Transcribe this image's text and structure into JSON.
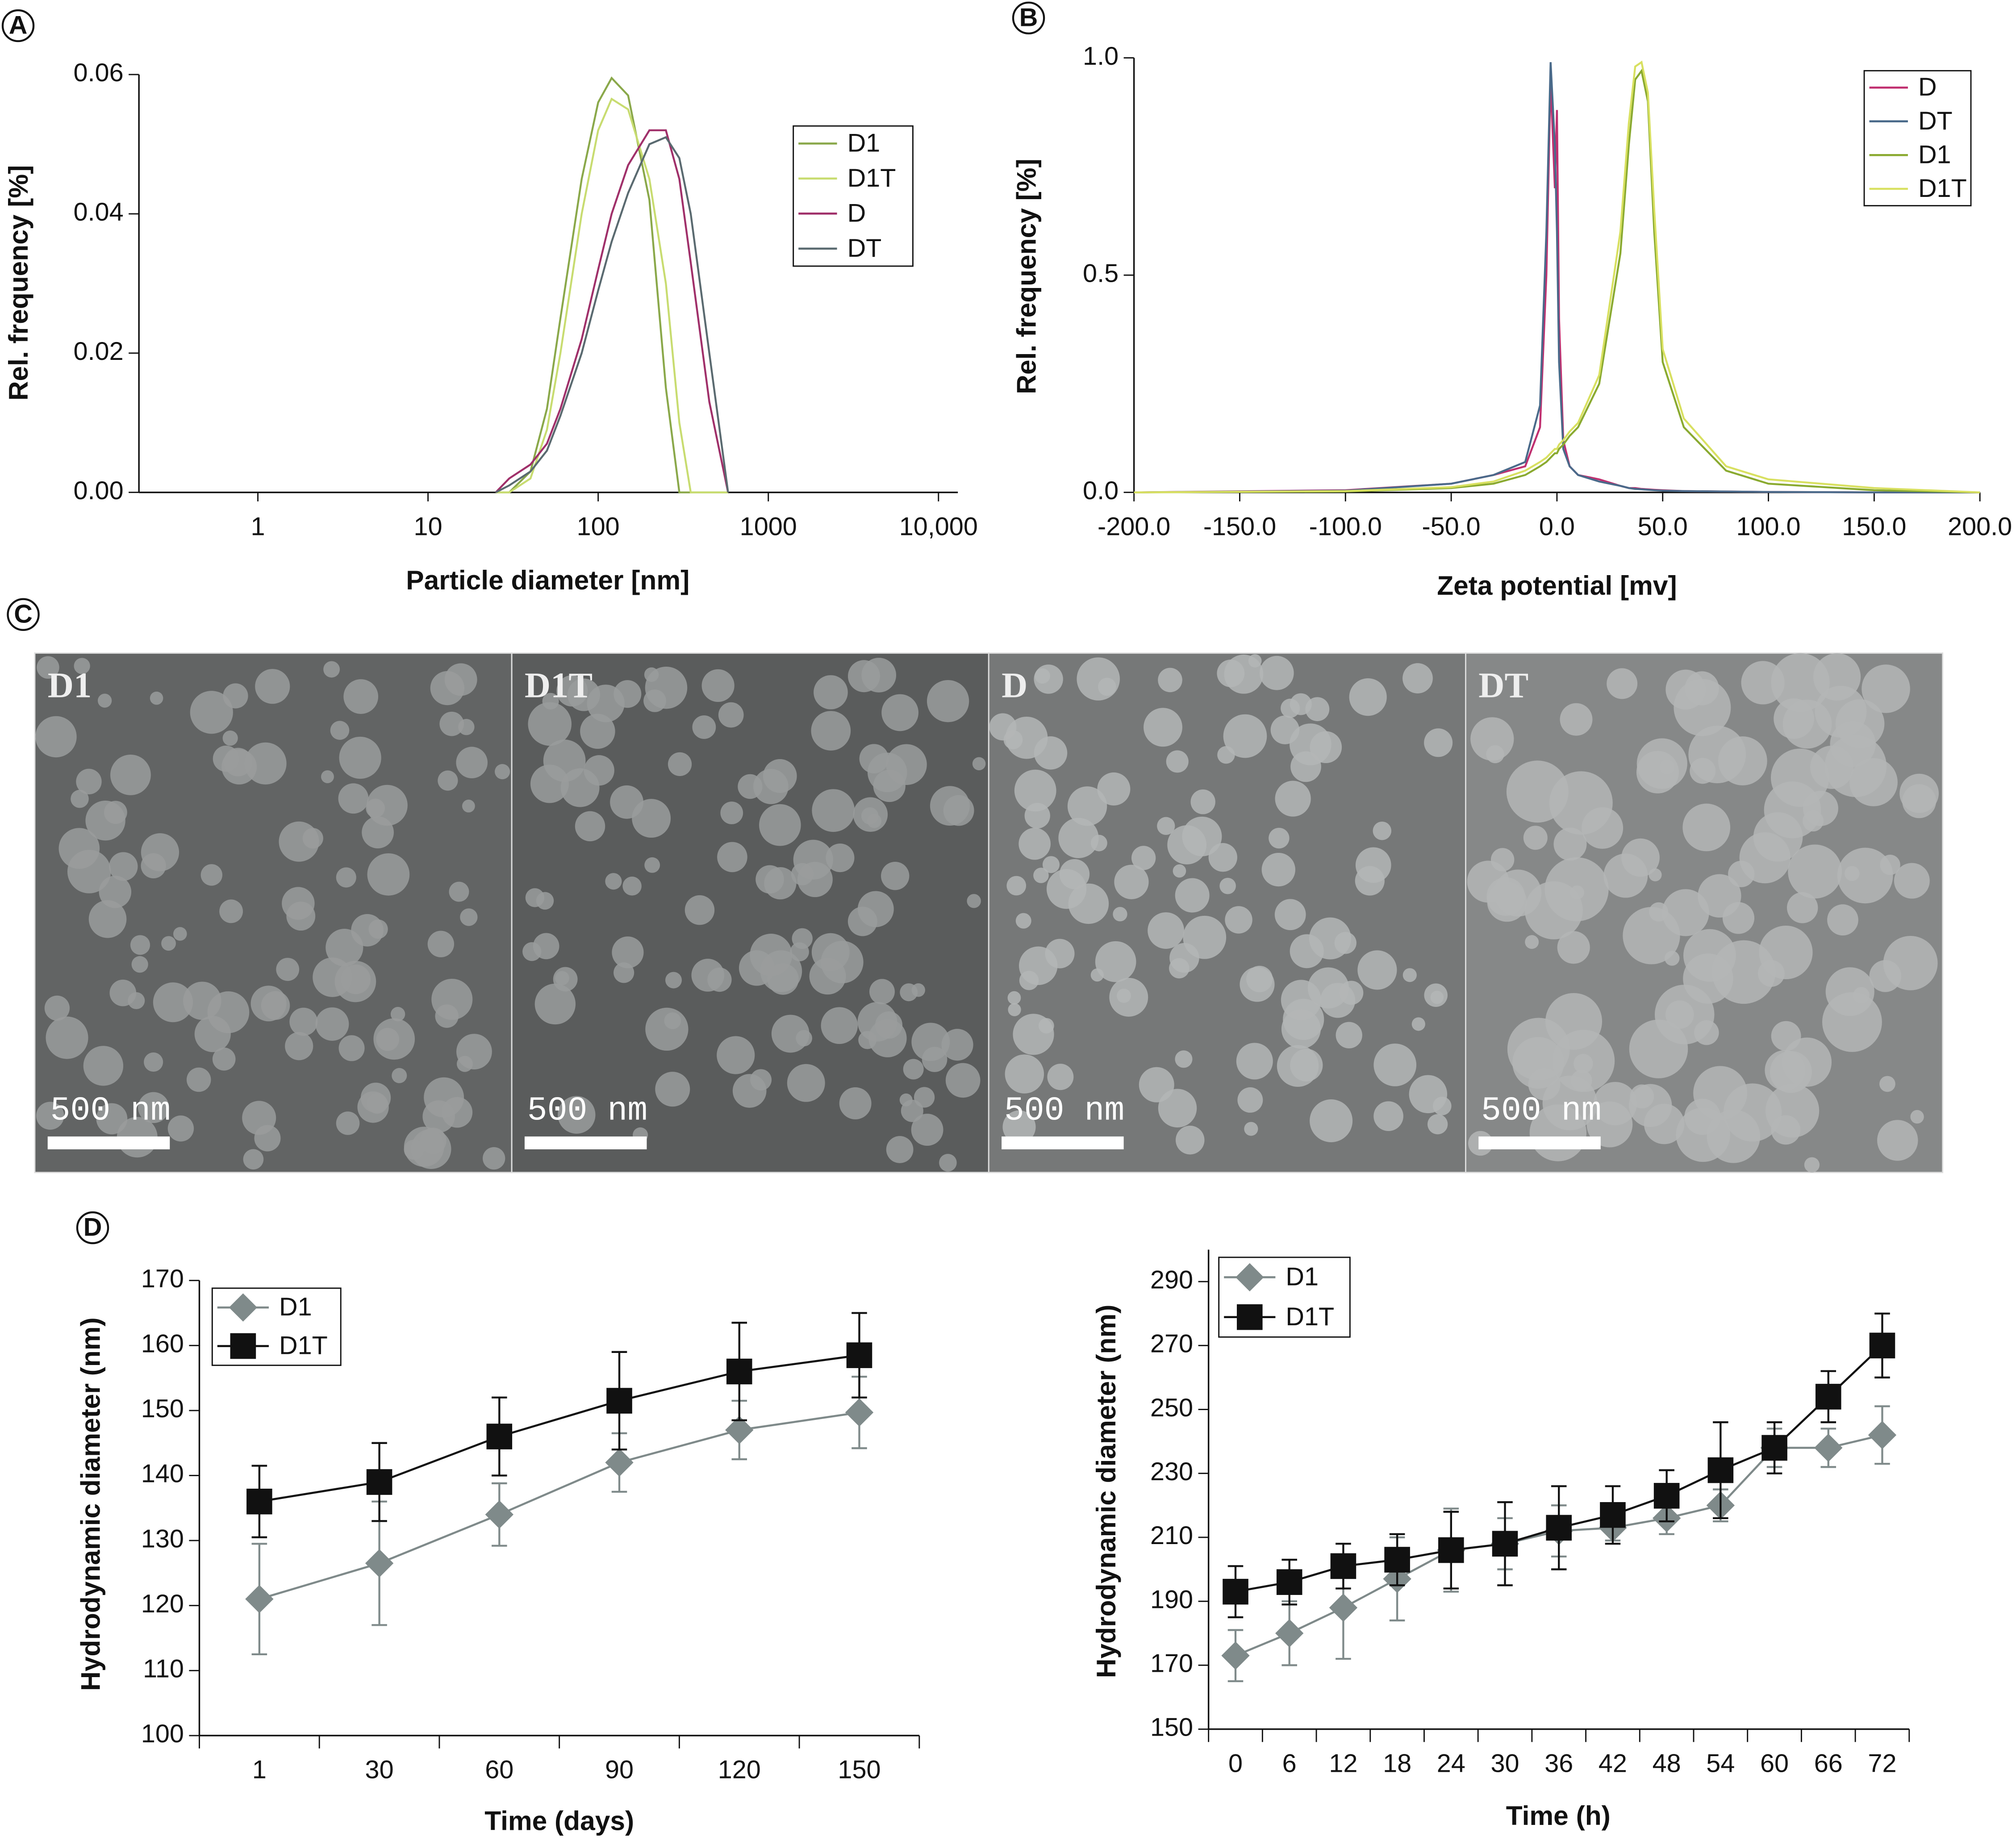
{
  "panel_letters": [
    "A",
    "B",
    "C",
    "D"
  ],
  "micrographs": [
    {
      "label": "D1",
      "scale_bar": "500 nm"
    },
    {
      "label": "D1T",
      "scale_bar": "500 nm"
    },
    {
      "label": "D",
      "scale_bar": "500 nm"
    },
    {
      "label": "DT",
      "scale_bar": "500 nm"
    }
  ],
  "chart_data": [
    {
      "type": "line",
      "x_label": "Particle diameter [nm]",
      "y_label": "Rel. frequency [%]",
      "xscale": "log",
      "xlim": [
        0.2,
        13000
      ],
      "xticks": [
        1,
        10,
        100,
        1000,
        {
          "value": 10000,
          "label": "10,000"
        }
      ],
      "ylim": [
        0,
        0.06
      ],
      "yticks": [
        {
          "value": 0,
          "label": "0.00"
        },
        {
          "value": 0.02,
          "label": "0.02"
        },
        {
          "value": 0.04,
          "label": "0.04"
        },
        {
          "value": 0.06,
          "label": "0.06"
        }
      ],
      "x": [
        25,
        30,
        40,
        50,
        60,
        80,
        100,
        120,
        150,
        200,
        250,
        300,
        350,
        450,
        580
      ],
      "series": [
        {
          "name": "D1",
          "color": "#8aa84a",
          "values": [
            0,
            0,
            0.003,
            0.012,
            0.025,
            0.045,
            0.056,
            0.0595,
            0.057,
            0.042,
            0.015,
            0,
            0,
            0,
            0
          ]
        },
        {
          "name": "D1T",
          "color": "#c8dc70",
          "values": [
            0,
            0,
            0.002,
            0.009,
            0.02,
            0.04,
            0.052,
            0.0565,
            0.055,
            0.045,
            0.03,
            0.01,
            0,
            0,
            0
          ]
        },
        {
          "name": "D",
          "color": "#a0306a",
          "values": [
            0,
            0.002,
            0.004,
            0.007,
            0.012,
            0.022,
            0.032,
            0.04,
            0.047,
            0.052,
            0.052,
            0.045,
            0.033,
            0.013,
            0
          ]
        },
        {
          "name": "DT",
          "color": "#5a6a70",
          "values": [
            0,
            0.001,
            0.003,
            0.006,
            0.011,
            0.02,
            0.029,
            0.036,
            0.043,
            0.05,
            0.051,
            0.048,
            0.04,
            0.02,
            0
          ]
        }
      ]
    },
    {
      "type": "line",
      "x_label": "Zeta potential [mv]",
      "y_label": "Rel. frequency [%]",
      "xlim": [
        -200,
        200
      ],
      "xticks": [
        {
          "value": -200,
          "label": "-200.0"
        },
        {
          "value": -150,
          "label": "-150.0"
        },
        {
          "value": -100,
          "label": "-100.0"
        },
        {
          "value": -50,
          "label": "-50.0"
        },
        {
          "value": 0,
          "label": "0.0"
        },
        {
          "value": 50,
          "label": "50.0"
        },
        {
          "value": 100,
          "label": "100.0"
        },
        {
          "value": 150,
          "label": "150.0"
        },
        {
          "value": 200,
          "label": "200.0"
        }
      ],
      "ylim": [
        0,
        1
      ],
      "yticks": [
        {
          "value": 0,
          "label": "0.0"
        },
        0.5,
        {
          "value": 1,
          "label": "1.0"
        }
      ],
      "x": [
        -200,
        -100,
        -50,
        -30,
        -15,
        -8,
        -5,
        -3,
        -1,
        0,
        1,
        3,
        6,
        10,
        20,
        30,
        34,
        37,
        40,
        43,
        46,
        50,
        60,
        80,
        100,
        150,
        200
      ],
      "series": [
        {
          "name": "D",
          "color": "#c03070",
          "values": [
            0,
            0.005,
            0.02,
            0.04,
            0.06,
            0.15,
            0.5,
            0.95,
            0.7,
            0.88,
            0.4,
            0.12,
            0.06,
            0.04,
            0.03,
            0.015,
            0.01,
            0.01,
            0.008,
            0.007,
            0.006,
            0.005,
            0.003,
            0.002,
            0.001,
            0,
            0
          ]
        },
        {
          "name": "DT",
          "color": "#4a6a8a",
          "values": [
            0,
            0.004,
            0.02,
            0.04,
            0.07,
            0.2,
            0.6,
            0.99,
            0.8,
            0.6,
            0.3,
            0.1,
            0.06,
            0.04,
            0.025,
            0.015,
            0.01,
            0.008,
            0.007,
            0.006,
            0.005,
            0.004,
            0.003,
            0.002,
            0.001,
            0,
            0
          ]
        },
        {
          "name": "D1",
          "color": "#8aaa30",
          "values": [
            0,
            0.002,
            0.01,
            0.02,
            0.04,
            0.06,
            0.07,
            0.08,
            0.09,
            0.09,
            0.1,
            0.11,
            0.13,
            0.15,
            0.25,
            0.55,
            0.8,
            0.95,
            0.97,
            0.9,
            0.6,
            0.3,
            0.15,
            0.05,
            0.02,
            0.005,
            0
          ]
        },
        {
          "name": "D1T",
          "color": "#d8e060",
          "values": [
            0,
            0.003,
            0.012,
            0.025,
            0.05,
            0.07,
            0.08,
            0.09,
            0.1,
            0.1,
            0.11,
            0.12,
            0.14,
            0.16,
            0.27,
            0.6,
            0.85,
            0.98,
            0.99,
            0.92,
            0.65,
            0.33,
            0.17,
            0.06,
            0.03,
            0.01,
            0
          ]
        }
      ]
    },
    {
      "type": "line",
      "x_label": "Time (days)",
      "y_label": "Hydrodynamic diameter (nm)",
      "categories": [
        "1",
        "30",
        "60",
        "90",
        "120",
        "150"
      ],
      "ylim": [
        100,
        170
      ],
      "yticks": [
        100,
        110,
        120,
        130,
        140,
        150,
        160,
        170
      ],
      "series": [
        {
          "name": "D1",
          "color": "#7f8a8a",
          "marker": "diamond",
          "values": [
            121,
            126.5,
            134,
            142,
            147,
            149.7
          ],
          "errors": [
            8.5,
            9.5,
            4.8,
            4.5,
            4.5,
            5.5
          ]
        },
        {
          "name": "D1T",
          "color": "#111111",
          "marker": "square",
          "values": [
            136,
            139,
            146,
            151.5,
            156,
            158.5
          ],
          "errors": [
            5.5,
            6,
            6,
            7.5,
            7.5,
            6.5
          ]
        }
      ]
    },
    {
      "type": "line",
      "x_label": "Time (h)",
      "y_label": "Hydrodynamic diameter (nm)",
      "categories": [
        "0",
        "6",
        "12",
        "18",
        "24",
        "30",
        "36",
        "42",
        "48",
        "54",
        "60",
        "66",
        "72"
      ],
      "ylim": [
        150,
        300
      ],
      "yticks": [
        150,
        170,
        190,
        210,
        230,
        250,
        270,
        290
      ],
      "series": [
        {
          "name": "D1",
          "color": "#7f8a8a",
          "marker": "diamond",
          "values": [
            173,
            180,
            188,
            197,
            206,
            208,
            212,
            213,
            216,
            220,
            238,
            238,
            242
          ],
          "errors": [
            8,
            10,
            16,
            13,
            13,
            8,
            8,
            4,
            5,
            5,
            6,
            6,
            9
          ]
        },
        {
          "name": "D1T",
          "color": "#111111",
          "marker": "square",
          "values": [
            193,
            196,
            201,
            203,
            206,
            208,
            213,
            217,
            223,
            231,
            238,
            254,
            270
          ],
          "errors": [
            8,
            7,
            7,
            8,
            12,
            13,
            13,
            9,
            8,
            15,
            8,
            8,
            10
          ]
        }
      ]
    }
  ]
}
